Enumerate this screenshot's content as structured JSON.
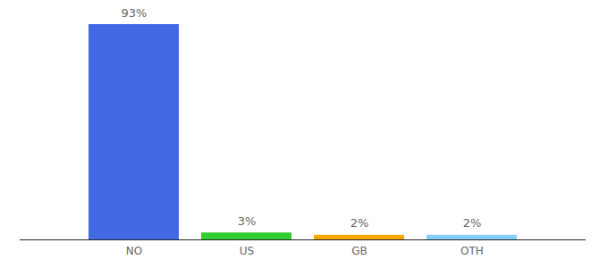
{
  "chart_data": {
    "type": "bar",
    "categories": [
      "NO",
      "US",
      "GB",
      "OTH"
    ],
    "values": [
      93,
      3,
      2,
      2
    ],
    "value_labels": [
      "93%",
      "3%",
      "2%",
      "2%"
    ],
    "colors": [
      "#4169e1",
      "#32cd32",
      "#ffa500",
      "#87cefa"
    ],
    "ylim": [
      0,
      93
    ],
    "data_labels": true,
    "tick_labels": "x"
  }
}
